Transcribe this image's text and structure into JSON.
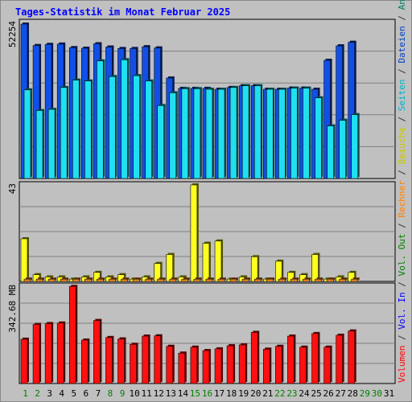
{
  "title": "Tages-Statistik im Monat Februar 2025",
  "right_label": {
    "parts": [
      {
        "text": "Volumen",
        "color": "#ff0000"
      },
      {
        "text": " / ",
        "color": "#333333"
      },
      {
        "text": "Vol. In",
        "color": "#0000ff"
      },
      {
        "text": " / ",
        "color": "#333333"
      },
      {
        "text": "Vol. Out",
        "color": "#008000"
      },
      {
        "text": " / ",
        "color": "#333333"
      },
      {
        "text": "Rechner",
        "color": "#ff8000"
      },
      {
        "text": " / ",
        "color": "#333333"
      },
      {
        "text": "Besuche",
        "color": "#c8c800"
      },
      {
        "text": " / ",
        "color": "#333333"
      },
      {
        "text": "Seiten",
        "color": "#00b0c8"
      },
      {
        "text": " / ",
        "color": "#333333"
      },
      {
        "text": "Dateien",
        "color": "#0040c0"
      },
      {
        "text": " / ",
        "color": "#333333"
      },
      {
        "text": "Anfragen",
        "color": "#008060"
      }
    ]
  },
  "colors": {
    "anfragen": "#004080",
    "dateien": "#1050e8",
    "seiten": "#20e0f0",
    "besuche": "#ffff20",
    "rechner": "#ff9020",
    "volumen": "#ff1010",
    "weekday_label": "#008000",
    "weekend_label": "#008000",
    "day_label": "#000000"
  },
  "chart_data": [
    {
      "type": "bar",
      "panel": "top",
      "ymax_label": "52254",
      "ylim": [
        0,
        52254
      ],
      "categories": [
        "1",
        "2",
        "3",
        "4",
        "5",
        "6",
        "7",
        "8",
        "9",
        "10",
        "11",
        "12",
        "13",
        "14",
        "15",
        "16",
        "17",
        "18",
        "19",
        "20",
        "21",
        "22",
        "23",
        "24",
        "25",
        "26",
        "27",
        "28",
        "29",
        "30",
        "31"
      ],
      "series": [
        {
          "name": "Anfragen",
          "values": [
            52254,
            45000,
            45400,
            45500,
            44300,
            44100,
            45600,
            44500,
            44000,
            44000,
            44600,
            44200,
            34000,
            30500,
            30500,
            30500,
            30200,
            30800,
            31400,
            31400,
            30200,
            30200,
            30600,
            30600,
            30200,
            40000,
            44900,
            46100,
            null,
            null,
            null
          ]
        },
        {
          "name": "Dateien",
          "values": [
            52254,
            45000,
            45400,
            45500,
            44300,
            44100,
            45600,
            44500,
            44000,
            44000,
            44600,
            44200,
            34000,
            30500,
            30500,
            30500,
            30200,
            30800,
            31400,
            31400,
            30200,
            30200,
            30600,
            30600,
            30200,
            40000,
            44900,
            46100,
            null,
            null,
            null
          ]
        },
        {
          "name": "Seiten",
          "values": [
            30000,
            23000,
            23400,
            30800,
            33300,
            33000,
            39800,
            34500,
            40200,
            34800,
            33000,
            24700,
            29000,
            30400,
            30400,
            30200,
            30200,
            30800,
            31400,
            31400,
            30200,
            30200,
            30600,
            30600,
            27300,
            17800,
            19700,
            21600,
            null,
            null,
            null
          ]
        }
      ]
    },
    {
      "type": "bar",
      "panel": "middle",
      "ymax_label": "43",
      "ylim": [
        0,
        43
      ],
      "categories": [
        "1",
        "2",
        "3",
        "4",
        "5",
        "6",
        "7",
        "8",
        "9",
        "10",
        "11",
        "12",
        "13",
        "14",
        "15",
        "16",
        "17",
        "18",
        "19",
        "20",
        "21",
        "22",
        "23",
        "24",
        "25",
        "26",
        "27",
        "28",
        "29",
        "30",
        "31"
      ],
      "series": [
        {
          "name": "Besuche",
          "values": [
            19,
            3,
            2,
            2,
            1,
            2,
            4,
            2,
            3,
            1,
            2,
            8,
            12,
            2,
            43,
            17,
            18,
            1,
            2,
            11,
            1,
            9,
            4,
            3,
            12,
            1,
            2,
            4,
            null,
            null,
            null
          ]
        },
        {
          "name": "Rechner",
          "values": [
            1,
            1,
            1,
            1,
            1,
            1,
            1,
            1,
            1,
            1,
            1,
            1,
            1,
            1,
            1,
            1,
            1,
            1,
            1,
            1,
            1,
            1,
            1,
            1,
            1,
            1,
            1,
            1,
            null,
            null,
            null
          ]
        }
      ]
    },
    {
      "type": "bar",
      "panel": "bottom",
      "ymax_label": "342.68 MB",
      "ylim": [
        0,
        342.68
      ],
      "categories": [
        "1",
        "2",
        "3",
        "4",
        "5",
        "6",
        "7",
        "8",
        "9",
        "10",
        "11",
        "12",
        "13",
        "14",
        "15",
        "16",
        "17",
        "18",
        "19",
        "20",
        "21",
        "22",
        "23",
        "24",
        "25",
        "26",
        "27",
        "28",
        "29",
        "30",
        "31"
      ],
      "series": [
        {
          "name": "Volumen",
          "values": [
            156,
            208,
            211,
            213,
            342,
            153,
            222,
            162,
            157,
            138,
            167,
            168,
            131,
            107,
            128,
            116,
            122,
            133,
            136,
            180,
            121,
            131,
            167,
            128,
            176,
            128,
            170,
            185,
            null,
            null,
            null
          ]
        }
      ]
    }
  ],
  "days": [
    "1",
    "2",
    "3",
    "4",
    "5",
    "6",
    "7",
    "8",
    "9",
    "10",
    "11",
    "12",
    "13",
    "14",
    "15",
    "16",
    "17",
    "18",
    "19",
    "20",
    "21",
    "22",
    "23",
    "24",
    "25",
    "26",
    "27",
    "28",
    "29",
    "30",
    "31"
  ],
  "weekend_days": [
    "1",
    "2",
    "8",
    "9",
    "15",
    "16",
    "22",
    "23",
    "29",
    "30"
  ]
}
